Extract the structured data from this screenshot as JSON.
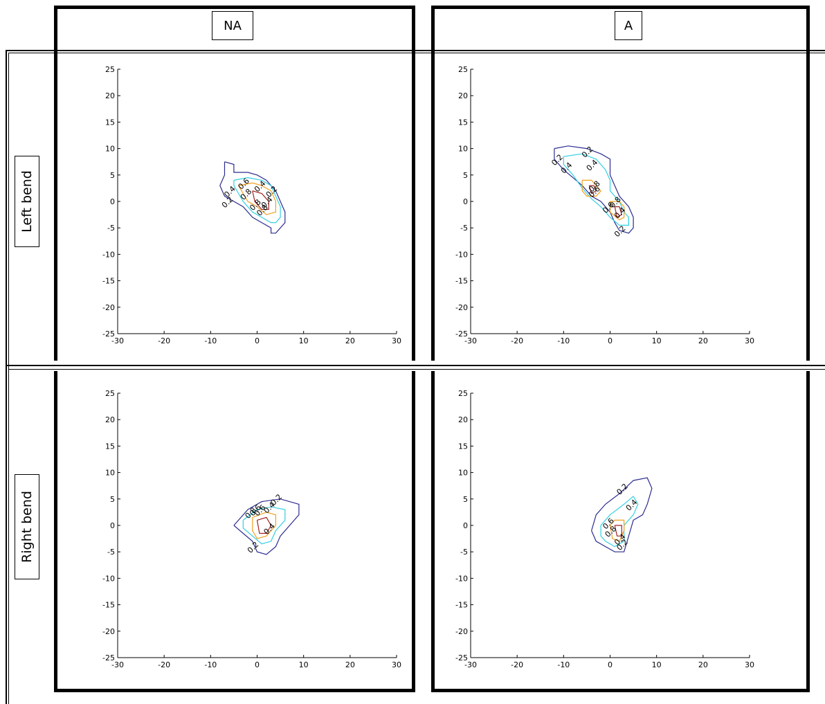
{
  "columns": [
    "NA",
    "A"
  ],
  "rows": [
    "Left bend",
    "Right bend"
  ],
  "colors": {
    "contour_0_2": "#2b2b8f",
    "contour_0_4": "#33d0e0",
    "contour_0_6": "#f0a020",
    "contour_0_8": "#a02020"
  },
  "chart_data": [
    {
      "panel": "Left bend / NA",
      "type": "contour",
      "xlim": [
        -30,
        30
      ],
      "ylim": [
        -25,
        25
      ],
      "xticks": [
        -30,
        -20,
        -10,
        0,
        10,
        20,
        30
      ],
      "yticks": [
        25,
        20,
        15,
        10,
        5,
        0,
        -5,
        -10,
        -15,
        -20,
        -25
      ],
      "levels": [
        {
          "level": 0.2,
          "points": [
            [
              -7,
              7.5
            ],
            [
              -5,
              7
            ],
            [
              -5,
              5.5
            ],
            [
              -2,
              5.5
            ],
            [
              0,
              5
            ],
            [
              2,
              4
            ],
            [
              3,
              3
            ],
            [
              4,
              2
            ],
            [
              5,
              0
            ],
            [
              6,
              -2
            ],
            [
              6,
              -4
            ],
            [
              4,
              -6
            ],
            [
              3,
              -6
            ],
            [
              3,
              -5
            ],
            [
              1,
              -4
            ],
            [
              -1,
              -3
            ],
            [
              -3,
              -1
            ],
            [
              -5,
              0
            ],
            [
              -7,
              1
            ],
            [
              -8,
              3
            ],
            [
              -7,
              5
            ],
            [
              -7,
              7.5
            ]
          ]
        },
        {
          "level": 0.4,
          "points": [
            [
              -5,
              4
            ],
            [
              -2,
              4.5
            ],
            [
              1,
              4
            ],
            [
              3,
              3
            ],
            [
              4,
              1
            ],
            [
              5,
              -1
            ],
            [
              5,
              -3
            ],
            [
              4,
              -4
            ],
            [
              3,
              -4
            ],
            [
              1,
              -3
            ],
            [
              -1,
              -2
            ],
            [
              -3,
              0
            ],
            [
              -4,
              1.5
            ],
            [
              -5,
              3
            ],
            [
              -5,
              4
            ]
          ]
        },
        {
          "level": 0.6,
          "points": [
            [
              -4,
              3
            ],
            [
              -1,
              3.5
            ],
            [
              1,
              3
            ],
            [
              3,
              2
            ],
            [
              4,
              0
            ],
            [
              4,
              -2
            ],
            [
              2,
              -2.5
            ],
            [
              0,
              -1
            ],
            [
              -2,
              0
            ],
            [
              -3,
              1.5
            ],
            [
              -4,
              3
            ]
          ]
        },
        {
          "level": 0.8,
          "points": [
            [
              -1,
              2
            ],
            [
              1,
              1.5
            ],
            [
              2.5,
              0
            ],
            [
              2.5,
              -1.5
            ],
            [
              1,
              -1.5
            ],
            [
              -0.5,
              0
            ],
            [
              -1,
              2
            ]
          ]
        }
      ],
      "labels": [
        {
          "text": "0.6",
          "x": -2.5,
          "y": 3
        },
        {
          "text": "0.8",
          "x": -2,
          "y": 1
        },
        {
          "text": "0.4",
          "x": 1,
          "y": 2.5
        },
        {
          "text": "0.2",
          "x": 3.5,
          "y": 1.5
        },
        {
          "text": "0.4",
          "x": -5.5,
          "y": 1.5
        },
        {
          "text": "0.2",
          "x": -6,
          "y": -0.5
        },
        {
          "text": "0.4",
          "x": 2.5,
          "y": -0.5
        },
        {
          "text": "0.8",
          "x": 0,
          "y": -1
        },
        {
          "text": "0.8",
          "x": 1.5,
          "y": -2
        }
      ]
    },
    {
      "panel": "Left bend / A",
      "type": "contour",
      "xlim": [
        -30,
        30
      ],
      "ylim": [
        -25,
        25
      ],
      "xticks": [
        -30,
        -20,
        -10,
        0,
        10,
        20,
        30
      ],
      "yticks": [
        25,
        20,
        15,
        10,
        5,
        0,
        -5,
        -10,
        -15,
        -20,
        -25
      ],
      "levels": [
        {
          "level": 0.2,
          "points": [
            [
              -12,
              10
            ],
            [
              -9,
              10.5
            ],
            [
              -5,
              10
            ],
            [
              -2,
              9
            ],
            [
              0,
              8
            ],
            [
              0,
              5
            ],
            [
              1,
              3
            ],
            [
              2,
              1
            ],
            [
              4,
              -1
            ],
            [
              5,
              -3
            ],
            [
              5,
              -5
            ],
            [
              4,
              -6
            ],
            [
              2,
              -5.5
            ],
            [
              1,
              -4
            ],
            [
              0,
              -2
            ],
            [
              -2,
              0
            ],
            [
              -4,
              1
            ],
            [
              -6,
              3
            ],
            [
              -8,
              4.5
            ],
            [
              -10,
              6
            ],
            [
              -12,
              8
            ],
            [
              -12,
              10
            ]
          ]
        },
        {
          "level": 0.4,
          "points": [
            [
              -10,
              8.5
            ],
            [
              -6,
              9
            ],
            [
              -3,
              8
            ],
            [
              -1,
              6
            ],
            [
              0,
              4
            ],
            [
              0,
              2
            ],
            [
              2,
              0
            ],
            [
              3,
              -2
            ],
            [
              4,
              -3
            ],
            [
              4,
              -4.5
            ],
            [
              2,
              -4.5
            ],
            [
              0,
              -3
            ],
            [
              -2,
              -1
            ],
            [
              -4,
              0.5
            ],
            [
              -6,
              2.5
            ],
            [
              -8,
              5
            ],
            [
              -10,
              7
            ],
            [
              -10,
              8.5
            ]
          ]
        },
        {
          "level": 0.6,
          "points": [
            [
              -6,
              4
            ],
            [
              -4,
              4
            ],
            [
              -3,
              3
            ],
            [
              -2,
              2
            ],
            [
              -3,
              1
            ],
            [
              -5,
              1
            ],
            [
              -6,
              2
            ],
            [
              -6,
              4
            ]
          ]
        },
        {
          "level": 0.6,
          "points": [
            [
              0,
              0
            ],
            [
              2,
              0
            ],
            [
              3,
              -1
            ],
            [
              3,
              -3
            ],
            [
              2,
              -3.5
            ],
            [
              0,
              -2
            ],
            [
              0,
              0
            ]
          ]
        },
        {
          "level": 0.8,
          "points": [
            [
              -4.5,
              3
            ],
            [
              -3.5,
              3
            ],
            [
              -3,
              2
            ],
            [
              -4,
              1.5
            ],
            [
              -4.5,
              3
            ]
          ]
        },
        {
          "level": 0.8,
          "points": [
            [
              1,
              -1
            ],
            [
              2,
              -1
            ],
            [
              2.5,
              -2.5
            ],
            [
              1.5,
              -3
            ],
            [
              1,
              -1
            ]
          ]
        }
      ],
      "labels": [
        {
          "text": "0.2",
          "x": -4.5,
          "y": 9
        },
        {
          "text": "0.2",
          "x": -11,
          "y": 7.5
        },
        {
          "text": "0.4",
          "x": -9,
          "y": 6
        },
        {
          "text": "0.4",
          "x": -3.5,
          "y": 6.5
        },
        {
          "text": "0.8",
          "x": -3,
          "y": 2.5
        },
        {
          "text": "0.6",
          "x": -3,
          "y": 1.5
        },
        {
          "text": "0.8",
          "x": 1.5,
          "y": -0.5
        },
        {
          "text": "0.6",
          "x": 0,
          "y": -1.5
        },
        {
          "text": "0.4",
          "x": 2.5,
          "y": -2.5
        },
        {
          "text": "0.2",
          "x": 2.5,
          "y": -6
        }
      ]
    },
    {
      "panel": "Right bend / NA",
      "type": "contour",
      "xlim": [
        -30,
        30
      ],
      "ylim": [
        -25,
        25
      ],
      "xticks": [
        -30,
        -20,
        -10,
        0,
        10,
        20,
        30
      ],
      "yticks": [
        25,
        20,
        15,
        10,
        5,
        0,
        -5,
        -10,
        -15,
        -20,
        -25
      ],
      "levels": [
        {
          "level": 0.2,
          "points": [
            [
              -5,
              0
            ],
            [
              -2,
              3
            ],
            [
              1,
              4.5
            ],
            [
              5,
              5
            ],
            [
              9,
              4
            ],
            [
              9,
              2
            ],
            [
              7,
              0
            ],
            [
              5,
              -2
            ],
            [
              4,
              -4
            ],
            [
              2,
              -5.5
            ],
            [
              0,
              -5
            ],
            [
              -1,
              -3
            ],
            [
              -3,
              -1.5
            ],
            [
              -5,
              0
            ]
          ]
        },
        {
          "level": 0.4,
          "points": [
            [
              -3,
              1
            ],
            [
              0,
              3
            ],
            [
              3,
              3.5
            ],
            [
              6,
              3
            ],
            [
              6,
              1
            ],
            [
              4,
              -1
            ],
            [
              3,
              -3
            ],
            [
              1,
              -3.5
            ],
            [
              -1,
              -2
            ],
            [
              -3,
              -0.5
            ],
            [
              -3,
              1
            ]
          ]
        },
        {
          "level": 0.6,
          "points": [
            [
              -1,
              1.5
            ],
            [
              2,
              2.5
            ],
            [
              4,
              2
            ],
            [
              4,
              0
            ],
            [
              2,
              -2
            ],
            [
              0,
              -2.5
            ],
            [
              -1,
              -1
            ],
            [
              -1,
              1.5
            ]
          ]
        },
        {
          "level": 0.8,
          "points": [
            [
              0,
              1
            ],
            [
              2,
              1.5
            ],
            [
              3,
              0
            ],
            [
              2,
              -1.5
            ],
            [
              0.5,
              -1.5
            ],
            [
              0,
              1
            ]
          ]
        }
      ],
      "labels": [
        {
          "text": "0.2",
          "x": 4.5,
          "y": 4.5
        },
        {
          "text": "0.4",
          "x": 3,
          "y": 3
        },
        {
          "text": "0.6",
          "x": 0,
          "y": 2.5
        },
        {
          "text": "0.8",
          "x": -1,
          "y": 2
        },
        {
          "text": "0.6",
          "x": 1,
          "y": 2.5
        },
        {
          "text": "0.4",
          "x": 3,
          "y": -1
        },
        {
          "text": "0.2",
          "x": -0.5,
          "y": -4.5
        }
      ]
    },
    {
      "panel": "Right bend / A",
      "type": "contour",
      "xlim": [
        -30,
        30
      ],
      "ylim": [
        -25,
        25
      ],
      "xticks": [
        -30,
        -20,
        -10,
        0,
        10,
        20,
        30
      ],
      "yticks": [
        25,
        20,
        15,
        10,
        5,
        0,
        -5,
        -10,
        -15,
        -20,
        -25
      ],
      "levels": [
        {
          "level": 0.2,
          "points": [
            [
              -4,
              -1
            ],
            [
              -3,
              2
            ],
            [
              -1,
              4
            ],
            [
              2,
              6
            ],
            [
              5,
              8.5
            ],
            [
              8,
              9
            ],
            [
              9,
              7
            ],
            [
              8,
              4
            ],
            [
              7,
              2
            ],
            [
              5,
              1
            ],
            [
              4,
              -2
            ],
            [
              3,
              -5
            ],
            [
              1,
              -5
            ],
            [
              -1,
              -4
            ],
            [
              -3,
              -3
            ],
            [
              -4,
              -1
            ]
          ]
        },
        {
          "level": 0.4,
          "points": [
            [
              -2,
              0
            ],
            [
              0,
              2
            ],
            [
              3,
              4
            ],
            [
              5,
              5.5
            ],
            [
              6,
              4
            ],
            [
              5,
              2
            ],
            [
              3,
              0
            ],
            [
              3,
              -3
            ],
            [
              1,
              -4
            ],
            [
              -1,
              -3
            ],
            [
              -2,
              -2
            ],
            [
              -2,
              0
            ]
          ]
        },
        {
          "level": 0.6,
          "points": [
            [
              0,
              0
            ],
            [
              1,
              1
            ],
            [
              3,
              1
            ],
            [
              3,
              -1
            ],
            [
              2,
              -3
            ],
            [
              0.5,
              -2.5
            ],
            [
              0,
              0
            ]
          ]
        },
        {
          "level": 0.8,
          "points": [
            [
              1,
              0
            ],
            [
              2.5,
              0
            ],
            [
              2.5,
              -2
            ],
            [
              1.5,
              -2
            ],
            [
              1,
              0
            ]
          ]
        }
      ],
      "labels": [
        {
          "text": "0.2",
          "x": 3,
          "y": 6.5
        },
        {
          "text": "0.4",
          "x": 5,
          "y": 3.5
        },
        {
          "text": "0.6",
          "x": 0,
          "y": 0
        },
        {
          "text": "0.8",
          "x": 0.5,
          "y": -1.5
        },
        {
          "text": "0.4",
          "x": 2.5,
          "y": -3
        },
        {
          "text": "0.2",
          "x": 3,
          "y": -4
        }
      ]
    }
  ]
}
